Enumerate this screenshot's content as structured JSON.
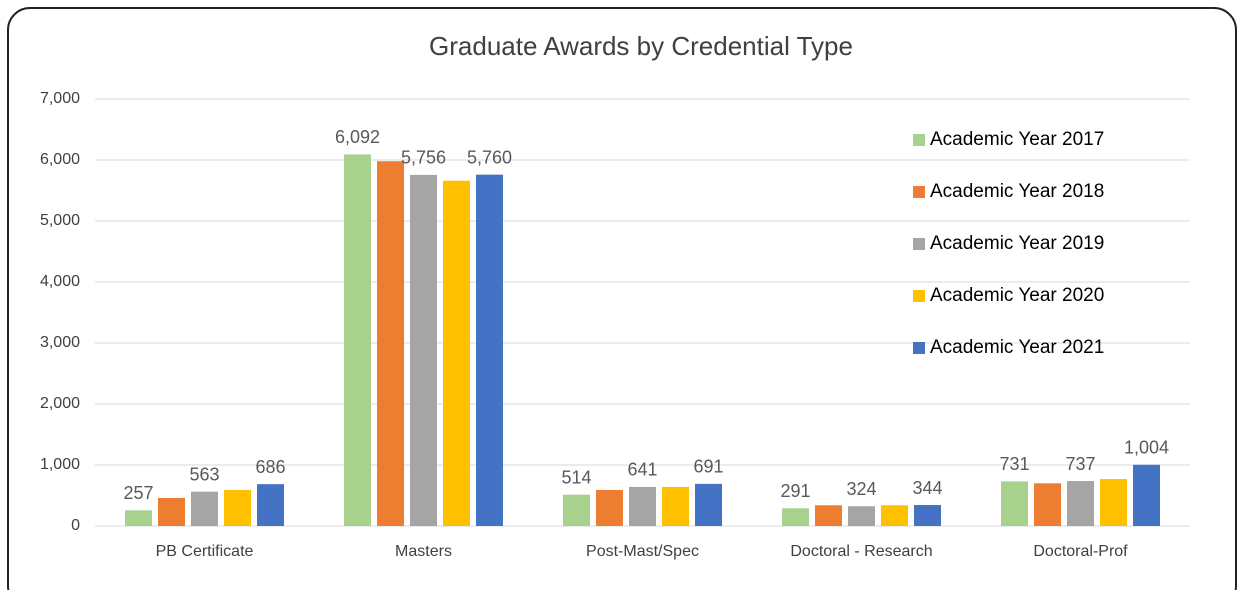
{
  "chart_data": {
    "type": "bar",
    "title": "Graduate Awards by Credential Type",
    "categories": [
      "PB Certificate",
      "Masters",
      "Post-Mast/Spec",
      "Doctoral - Research",
      "Doctoral-Prof"
    ],
    "series": [
      {
        "name": "Academic Year 2017",
        "color": "#a9d18e",
        "values": [
          257,
          6092,
          514,
          291,
          731
        ],
        "value_labels": [
          "257",
          "6,092",
          "514",
          "291",
          "731"
        ]
      },
      {
        "name": "Academic Year 2018",
        "color": "#ed7d31",
        "values": [
          460,
          5980,
          590,
          340,
          700
        ],
        "value_labels": [
          null,
          null,
          null,
          null,
          null
        ]
      },
      {
        "name": "Academic Year 2019",
        "color": "#a5a5a5",
        "values": [
          563,
          5756,
          641,
          324,
          737
        ],
        "value_labels": [
          "563",
          "5,756",
          "641",
          "324",
          "737"
        ]
      },
      {
        "name": "Academic Year 2020",
        "color": "#ffc000",
        "values": [
          590,
          5660,
          640,
          340,
          770
        ],
        "value_labels": [
          null,
          null,
          null,
          null,
          null
        ]
      },
      {
        "name": "Academic Year 2021",
        "color": "#4472c4",
        "values": [
          686,
          5760,
          691,
          344,
          1004
        ],
        "value_labels": [
          "686",
          "5,760",
          "691",
          "344",
          "1,004"
        ]
      }
    ],
    "ylim": [
      0,
      7000
    ],
    "yticks": [
      0,
      {
        "value": 1000,
        "label": "1,000"
      },
      {
        "value": 2000,
        "label": "2,000"
      },
      {
        "value": 3000,
        "label": "3,000"
      },
      {
        "value": 4000,
        "label": "4,000"
      },
      {
        "value": 5000,
        "label": "5,000"
      },
      {
        "value": 6000,
        "label": "6,000"
      },
      {
        "value": 7000,
        "label": "7,000"
      }
    ],
    "grid": true,
    "legend": "right"
  }
}
